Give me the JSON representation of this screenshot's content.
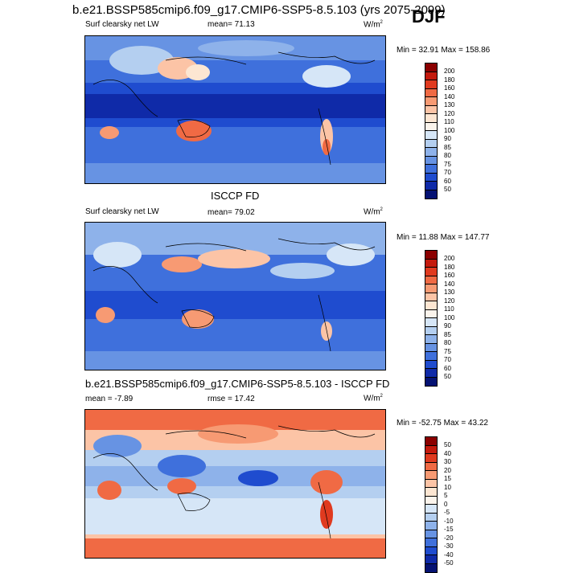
{
  "season": "DJF",
  "panels": [
    {
      "title": "b.e21.BSSP585cmip6.f09_g17.CMIP6-SSP5-8.5.103 (yrs 2075-2099)",
      "variable": "Surf clearsky net LW",
      "stat": "mean=  71.13",
      "units": "W/m",
      "units_sup": "2",
      "minmax": "Min = 32.91 Max = 158.86",
      "levels": [
        "200",
        "180",
        "160",
        "140",
        "130",
        "120",
        "110",
        "100",
        "90",
        "85",
        "80",
        "75",
        "70",
        "60",
        "50"
      ],
      "colors": [
        "#8b0000",
        "#c41a0d",
        "#e03a1f",
        "#f06a44",
        "#f79a73",
        "#fcc4a6",
        "#fde6d2",
        "#fbf4ec",
        "#d6e6f7",
        "#b4cff0",
        "#8eb2ea",
        "#6793e3",
        "#3f70dc",
        "#1f4ccf",
        "#0f2aa8",
        "#051273"
      ]
    },
    {
      "title": "ISCCP FD",
      "variable": "Surf clearsky net LW",
      "stat": "mean=  79.02",
      "units": "W/m",
      "units_sup": "2",
      "minmax": "Min = 11.88 Max = 147.77",
      "levels": [
        "200",
        "180",
        "160",
        "140",
        "130",
        "120",
        "110",
        "100",
        "90",
        "85",
        "80",
        "75",
        "70",
        "60",
        "50"
      ],
      "colors": [
        "#8b0000",
        "#c41a0d",
        "#e03a1f",
        "#f06a44",
        "#f79a73",
        "#fcc4a6",
        "#fde6d2",
        "#fbf4ec",
        "#d6e6f7",
        "#b4cff0",
        "#8eb2ea",
        "#6793e3",
        "#3f70dc",
        "#1f4ccf",
        "#0f2aa8",
        "#051273"
      ]
    },
    {
      "title": "b.e21.BSSP585cmip6.f09_g17.CMIP6-SSP5-8.5.103 - ISCCP FD",
      "stat_left": "mean =  -7.89",
      "stat": "rmse =  17.42",
      "units": "W/m",
      "units_sup": "2",
      "minmax": "Min = -52.75 Max = 43.22",
      "levels": [
        "50",
        "40",
        "30",
        "20",
        "15",
        "10",
        "5",
        "0",
        "-5",
        "-10",
        "-15",
        "-20",
        "-30",
        "-40",
        "-50"
      ],
      "colors": [
        "#8b0000",
        "#c41a0d",
        "#e03a1f",
        "#f06a44",
        "#f79a73",
        "#fcc4a6",
        "#fde6d2",
        "#fbf4ec",
        "#d6e6f7",
        "#b4cff0",
        "#8eb2ea",
        "#6793e3",
        "#3f70dc",
        "#1f4ccf",
        "#0f2aa8",
        "#051273"
      ]
    }
  ]
}
